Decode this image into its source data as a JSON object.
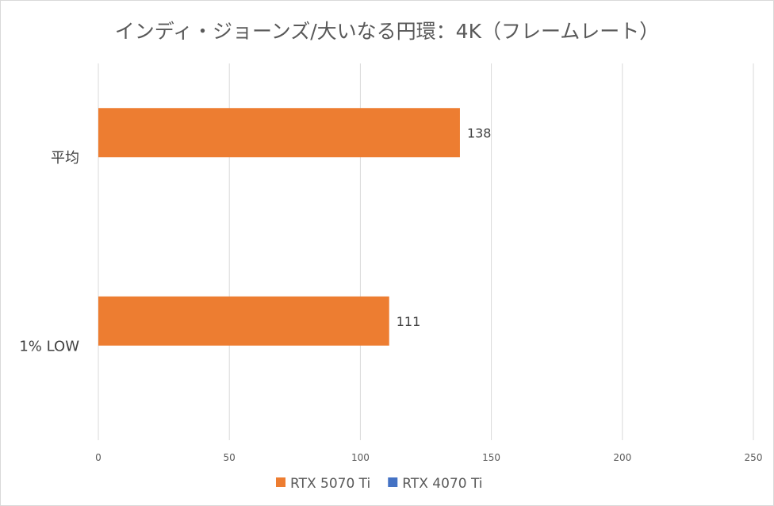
{
  "chart_data": {
    "type": "bar",
    "orientation": "horizontal",
    "title": "インディ・ジョーンズ/大いなる円環：4K（フレームレート）",
    "categories": [
      "平均",
      "1% LOW"
    ],
    "series": [
      {
        "name": "RTX 5070 Ti",
        "color": "#ed7d31",
        "values": [
          138,
          111
        ]
      },
      {
        "name": "RTX 4070 Ti",
        "color": "#4472c4",
        "values": [
          null,
          null
        ]
      }
    ],
    "xlim": [
      0,
      250
    ],
    "xticks": [
      "0",
      "50",
      "100",
      "150",
      "200",
      "250"
    ],
    "grid": true,
    "legend": "bottom",
    "data_labels": [
      "138",
      "111"
    ]
  }
}
